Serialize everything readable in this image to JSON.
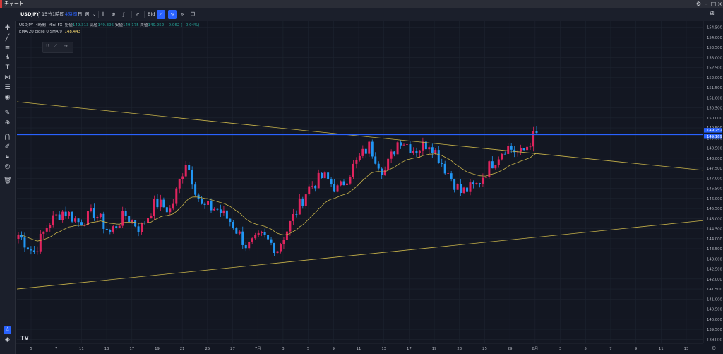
{
  "window": {
    "title": "チャート"
  },
  "toolbar": {
    "symbol": "USDJPY",
    "timeframes": [
      {
        "label": "15分",
        "selected": false
      },
      {
        "label": "1時間",
        "selected": false
      },
      {
        "label": "4時間",
        "selected": true
      },
      {
        "label": "日",
        "selected": false
      },
      {
        "label": "週",
        "selected": false
      }
    ],
    "price_source": "Bid"
  },
  "legend": {
    "symbol": "USDJPY",
    "timeframe": "4時間",
    "broker": "Mini FX",
    "open_label": "始値",
    "open": "149.313",
    "high_label": "高値",
    "high": "149.395",
    "low_label": "安値",
    "low": "149.175",
    "close_label": "終値",
    "close": "149.252",
    "change": "−0.062 (−0.04%)",
    "indicator": "EMA 20 close 0 SMA 9",
    "indicator_value": "148.443"
  },
  "price_axis": {
    "labels": [
      "154.500",
      "154.000",
      "153.500",
      "153.000",
      "152.500",
      "152.000",
      "151.500",
      "151.000",
      "150.500",
      "150.000",
      "149.500",
      "149.000",
      "148.500",
      "148.000",
      "147.500",
      "147.000",
      "146.500",
      "146.000",
      "145.500",
      "145.000",
      "144.500",
      "144.000",
      "143.500",
      "143.000",
      "142.500",
      "142.000",
      "141.500",
      "141.000",
      "140.500",
      "140.000",
      "139.500",
      "139.000"
    ],
    "current_price": "149.252",
    "line_price": "149.169"
  },
  "date_axis": {
    "labels": [
      "5",
      "7",
      "11",
      "13",
      "17",
      "19",
      "21",
      "25",
      "27",
      "7月",
      "3",
      "5",
      "9",
      "11",
      "13",
      "17",
      "19",
      "23",
      "25",
      "29",
      "8月",
      "3",
      "5",
      "7",
      "9",
      "11",
      "13"
    ]
  },
  "colors": {
    "background": "#131722",
    "up_candle": "#e0245e",
    "down_candle": "#2196f3",
    "ema": "#c9b44a",
    "trendline": "#c9b44a",
    "horizontal_line": "#2962ff"
  },
  "chart_data": {
    "type": "candlestick",
    "symbol": "USDJPY",
    "timeframe": "4時間",
    "ylim": [
      138.8,
      154.8
    ],
    "price_levels": {
      "horizontal_line": 149.169,
      "last_close": 149.252
    },
    "trendlines": [
      {
        "name": "upper",
        "from": 150.8,
        "to": 147.4
      },
      {
        "name": "lower",
        "from": 141.5,
        "to": 144.9
      }
    ],
    "anchor_closes": [
      144.2,
      143.3,
      144.8,
      145.4,
      144.8,
      145.3,
      144.3,
      145.2,
      144.5,
      145.8,
      145.4,
      147.9,
      145.6,
      145.5,
      144.8,
      143.6,
      144.1,
      143.5,
      145.0,
      146.5,
      147.1,
      146.4,
      147.6,
      148.6,
      147.3,
      149.0,
      148.4,
      148.8,
      147.5,
      146.3,
      146.6,
      147.7,
      148.6,
      148.2,
      149.3
    ]
  }
}
